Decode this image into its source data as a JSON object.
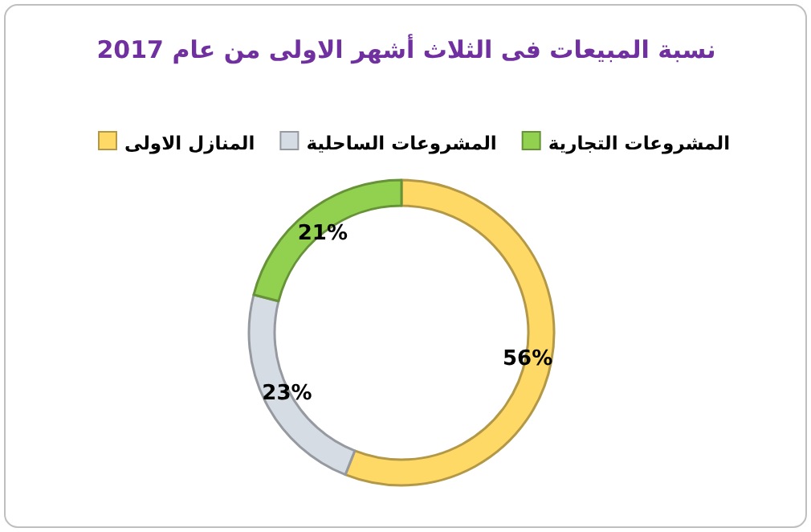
{
  "chart_data": {
    "type": "donut",
    "title": "نسبة المبيعات فى الثلاث أشهر الاولى  من عام 2017",
    "categories": [
      "المنازل الاولى",
      "المشروعات الساحلية",
      "المشروعات التجارية"
    ],
    "values": [
      56,
      23,
      21
    ],
    "colors": [
      "#ffd966",
      "#d6dce4",
      "#92d050"
    ],
    "value_labels": [
      "56%",
      "23%",
      "21%"
    ],
    "legend": "top"
  }
}
